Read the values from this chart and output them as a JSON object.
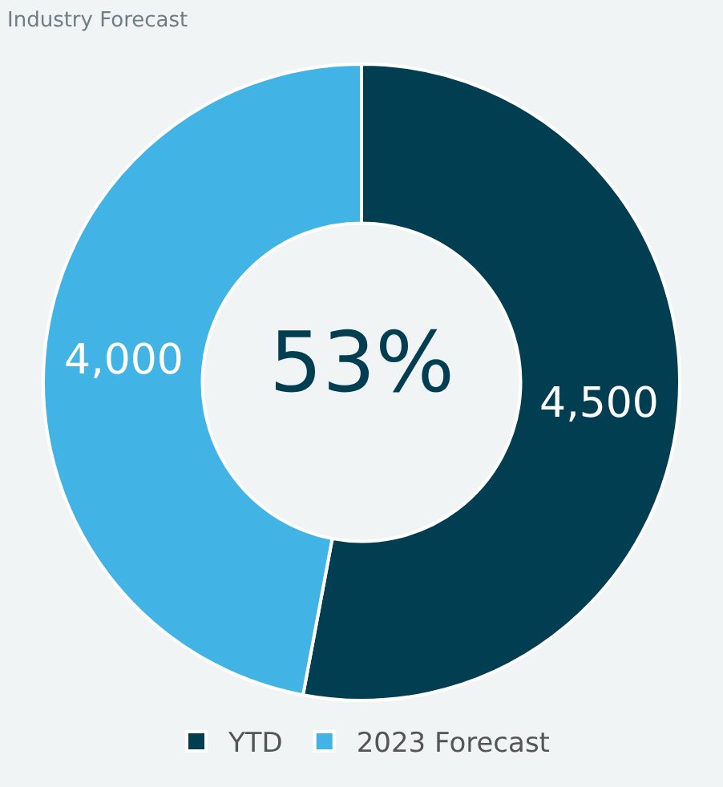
{
  "chart_data": {
    "type": "donut",
    "title": "Industry Forecast",
    "categories": [
      "YTD",
      "2023 Forecast"
    ],
    "values": [
      4500,
      4000
    ],
    "colors": [
      "#023e52",
      "#41b4e5"
    ],
    "value_labels": [
      "4,500",
      "4,000"
    ],
    "annotations": [
      "53%"
    ],
    "legend": "bottom"
  }
}
